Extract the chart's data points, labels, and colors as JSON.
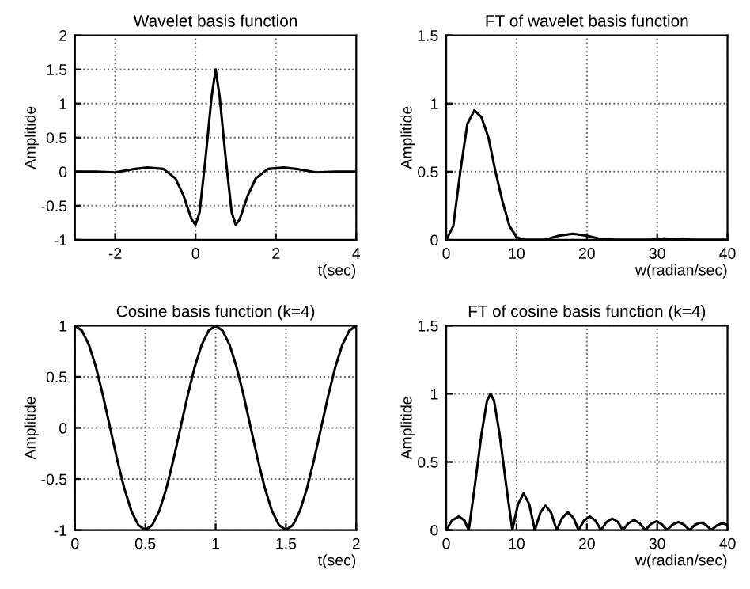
{
  "chart_data": [
    {
      "type": "line",
      "title": "Wavelet basis function",
      "xlabel": "t(sec)",
      "ylabel": "Amplitide",
      "grid": true,
      "line_style": "solid",
      "xlim": [
        -3,
        4
      ],
      "xticks": [
        -2,
        0,
        2,
        4
      ],
      "ylim": [
        -1,
        2
      ],
      "yticks": [
        -1,
        -0.5,
        0,
        0.5,
        1,
        1.5,
        2
      ],
      "series": [
        {
          "color": "#000000",
          "x": [
            -3,
            -2.5,
            -2,
            -1.5,
            -1.2,
            -0.8,
            -0.5,
            -0.3,
            -0.1,
            0,
            0.1,
            0.25,
            0.4,
            0.5,
            0.6,
            0.75,
            0.9,
            1.0,
            1.1,
            1.3,
            1.5,
            1.8,
            2.2,
            2.5,
            3,
            3.5,
            4
          ],
          "values": [
            0,
            0,
            -0.01,
            0.04,
            0.06,
            0.04,
            -0.1,
            -0.35,
            -0.7,
            -0.78,
            -0.6,
            0.2,
            1.1,
            1.5,
            1.1,
            0.2,
            -0.6,
            -0.78,
            -0.7,
            -0.35,
            -0.1,
            0.04,
            0.06,
            0.04,
            -0.01,
            0,
            0
          ]
        }
      ]
    },
    {
      "type": "line",
      "title": "FT of wavelet basis function",
      "xlabel": "w(radian/sec)",
      "ylabel": "Amplitide",
      "grid": true,
      "line_style": "solid",
      "xlim": [
        0,
        40
      ],
      "xticks": [
        0,
        10,
        20,
        30,
        40
      ],
      "ylim": [
        0,
        1.5
      ],
      "yticks": [
        0,
        0.5,
        1,
        1.5
      ],
      "series": [
        {
          "color": "#000000",
          "x": [
            0,
            1,
            2,
            3,
            4,
            5,
            6,
            7,
            8,
            9,
            10,
            11,
            14,
            16,
            18,
            20,
            22,
            24,
            29,
            31,
            33,
            35,
            40
          ],
          "values": [
            0,
            0.1,
            0.5,
            0.85,
            0.95,
            0.9,
            0.75,
            0.5,
            0.28,
            0.1,
            0.02,
            0,
            0,
            0.03,
            0.045,
            0.03,
            0.005,
            0,
            0,
            0.01,
            0.005,
            0,
            0
          ]
        }
      ]
    },
    {
      "type": "line",
      "title": "Cosine basis function (k=4)",
      "xlabel": "t(sec)",
      "ylabel": "Amplitide",
      "grid": true,
      "line_style": "solid",
      "xlim": [
        0,
        2
      ],
      "xticks": [
        0,
        0.5,
        1,
        1.5,
        2
      ],
      "ylim": [
        -1,
        1
      ],
      "yticks": [
        -1,
        -0.5,
        0,
        0.5,
        1
      ],
      "series": [
        {
          "color": "#000000",
          "x": [
            0,
            0.05,
            0.1,
            0.15,
            0.2,
            0.25,
            0.3,
            0.35,
            0.4,
            0.45,
            0.5,
            0.55,
            0.6,
            0.65,
            0.7,
            0.75,
            0.8,
            0.85,
            0.9,
            0.95,
            1.0,
            1.05,
            1.1,
            1.15,
            1.2,
            1.25,
            1.3,
            1.35,
            1.4,
            1.45,
            1.5,
            1.55,
            1.6,
            1.65,
            1.7,
            1.75,
            1.8,
            1.85,
            1.9,
            1.95,
            2.0
          ],
          "values": [
            1,
            0.95,
            0.81,
            0.59,
            0.31,
            0,
            -0.31,
            -0.59,
            -0.81,
            -0.95,
            -1,
            -0.95,
            -0.81,
            -0.59,
            -0.31,
            0,
            0.31,
            0.59,
            0.81,
            0.95,
            1,
            0.95,
            0.81,
            0.59,
            0.31,
            0,
            -0.31,
            -0.59,
            -0.81,
            -0.95,
            -1,
            -0.95,
            -0.81,
            -0.59,
            -0.31,
            0,
            0.31,
            0.59,
            0.81,
            0.95,
            1
          ]
        }
      ]
    },
    {
      "type": "line",
      "title": "FT of cosine basis function (k=4)",
      "xlabel": "w(radian/sec)",
      "ylabel": "Amplitide",
      "grid": true,
      "line_style": "solid",
      "xlim": [
        0,
        40
      ],
      "xticks": [
        0,
        10,
        20,
        30,
        40
      ],
      "ylim": [
        0,
        1.5
      ],
      "yticks": [
        0,
        0.5,
        1,
        1.5
      ],
      "series": [
        {
          "color": "#000000",
          "x": [
            0,
            0.8,
            1.8,
            2.6,
            3.2,
            4,
            5,
            5.8,
            6.3,
            6.8,
            7.6,
            8.6,
            9.4,
            10.2,
            11,
            11.8,
            12.6,
            13.4,
            14.1,
            14.9,
            15.7,
            16.5,
            17.3,
            18.1,
            18.8,
            19.6,
            20.4,
            21.2,
            22,
            22.8,
            23.6,
            24.4,
            25.1,
            25.9,
            26.7,
            27.5,
            28.3,
            29.1,
            29.9,
            30.6,
            31.4,
            32.2,
            33,
            33.8,
            34.6,
            35.4,
            36.2,
            36.9,
            37.7,
            38.5,
            39.2,
            40
          ],
          "values": [
            0,
            0.07,
            0.1,
            0.07,
            0,
            0.3,
            0.7,
            0.95,
            1.0,
            0.95,
            0.7,
            0.3,
            0,
            0.19,
            0.27,
            0.19,
            0,
            0.13,
            0.18,
            0.13,
            0,
            0.09,
            0.13,
            0.09,
            0,
            0.07,
            0.1,
            0.07,
            0,
            0.06,
            0.085,
            0.06,
            0,
            0.05,
            0.075,
            0.05,
            0,
            0.045,
            0.065,
            0.045,
            0,
            0.04,
            0.06,
            0.04,
            0,
            0.04,
            0.055,
            0.04,
            0,
            0.035,
            0.05,
            0.04
          ]
        }
      ]
    }
  ]
}
